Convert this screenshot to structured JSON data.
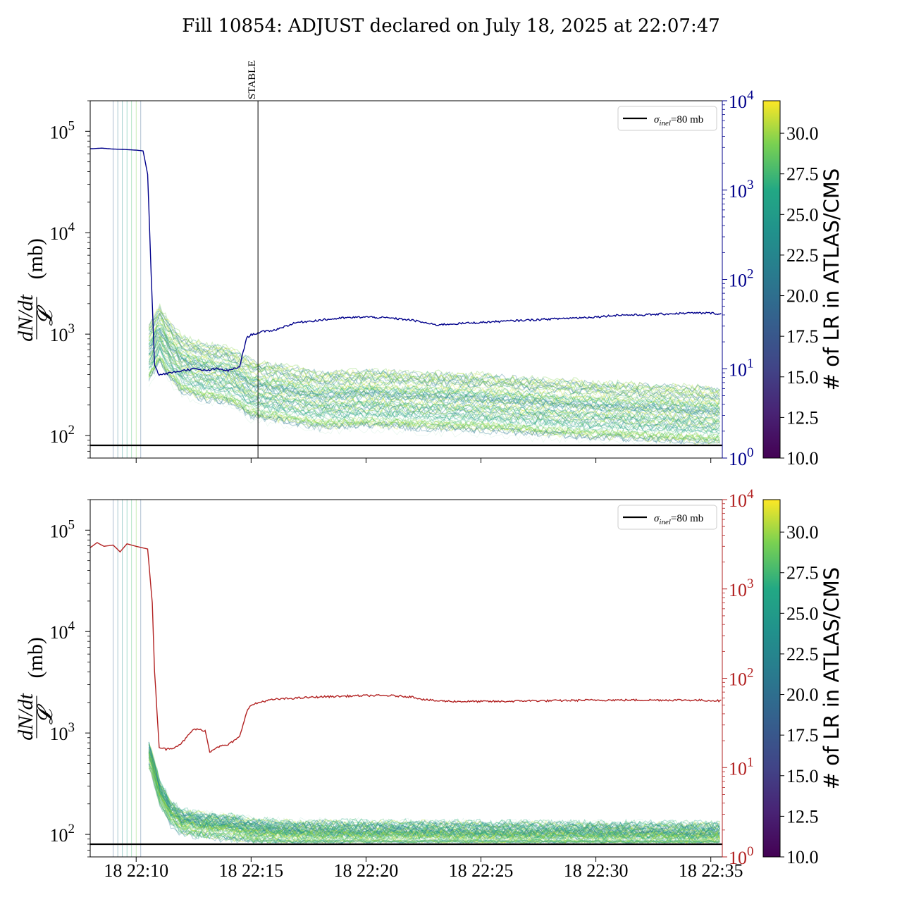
{
  "title": "Fill 10854: ADJUST declared on July 18, 2025 at 22:07:47",
  "chart_data": [
    {
      "type": "line",
      "panel": "top",
      "ylabel": "dN/dt / 𝓛 (mb)",
      "ylim": [
        60,
        200000
      ],
      "yscale": "log",
      "y_ticks": [
        "10^2",
        "10^3",
        "10^4",
        "10^5"
      ],
      "x_ticks": [
        "18 22:10",
        "18 22:15",
        "18 22:20",
        "18 22:25",
        "18 22:30",
        "18 22:35"
      ],
      "x_range_minutes": [
        8.0,
        35.5
      ],
      "reference_line": {
        "label": "σinel=80 mb",
        "value": 80
      },
      "vline": {
        "label": "STABLE",
        "x_minutes": 15.3
      },
      "right_axis": {
        "color": "#00008b",
        "yscale": "log",
        "ylim": [
          1,
          10000
        ],
        "ticks": [
          "10^0",
          "10^1",
          "10^2",
          "10^3",
          "10^4"
        ],
        "series_points_min_value": [
          [
            8.0,
            2900
          ],
          [
            8.5,
            2950
          ],
          [
            9.0,
            2880
          ],
          [
            9.5,
            2850
          ],
          [
            10.0,
            2800
          ],
          [
            10.3,
            2750
          ],
          [
            10.5,
            1500
          ],
          [
            10.65,
            120
          ],
          [
            10.8,
            11
          ],
          [
            11.0,
            8.5
          ],
          [
            11.5,
            9
          ],
          [
            12.0,
            9.5
          ],
          [
            12.5,
            10
          ],
          [
            13.0,
            9.5
          ],
          [
            13.5,
            10
          ],
          [
            14.0,
            9.5
          ],
          [
            14.5,
            10.5
          ],
          [
            14.8,
            22
          ],
          [
            15.0,
            24
          ],
          [
            15.5,
            26
          ],
          [
            16.0,
            27
          ],
          [
            16.5,
            30
          ],
          [
            17.0,
            33
          ],
          [
            18.0,
            35
          ],
          [
            19.0,
            37
          ],
          [
            20.0,
            38
          ],
          [
            21.0,
            37
          ],
          [
            22.0,
            35
          ],
          [
            22.5,
            33
          ],
          [
            23.0,
            31
          ],
          [
            24.0,
            32
          ],
          [
            25.0,
            33
          ],
          [
            26.0,
            34
          ],
          [
            27.0,
            35
          ],
          [
            28.0,
            36
          ],
          [
            29.0,
            37
          ],
          [
            30.0,
            38
          ],
          [
            31.0,
            40
          ],
          [
            32.0,
            40
          ],
          [
            33.0,
            41
          ],
          [
            34.0,
            42
          ],
          [
            35.0,
            42
          ],
          [
            35.5,
            41
          ]
        ]
      },
      "bundle": {
        "typical_points": [
          [
            10.6,
            600
          ],
          [
            11.0,
            900
          ],
          [
            11.5,
            600
          ],
          [
            12.0,
            450
          ],
          [
            13.0,
            380
          ],
          [
            14.0,
            360
          ],
          [
            14.6,
            300
          ],
          [
            15.0,
            260
          ],
          [
            16.0,
            240
          ],
          [
            17.0,
            220
          ],
          [
            18.0,
            200
          ],
          [
            20.0,
            210
          ],
          [
            22.0,
            200
          ],
          [
            25.0,
            190
          ],
          [
            28.0,
            170
          ],
          [
            30.0,
            160
          ],
          [
            33.0,
            150
          ],
          [
            35.5,
            140
          ]
        ]
      }
    },
    {
      "type": "line",
      "panel": "bottom",
      "ylabel": "dN/dt / 𝓛 (mb)",
      "ylim": [
        60,
        200000
      ],
      "yscale": "log",
      "y_ticks": [
        "10^2",
        "10^3",
        "10^4",
        "10^5"
      ],
      "x_ticks": [
        "18 22:10",
        "18 22:15",
        "18 22:20",
        "18 22:25",
        "18 22:30",
        "18 22:35"
      ],
      "x_range_minutes": [
        8.0,
        35.5
      ],
      "reference_line": {
        "label": "σinel=80 mb",
        "value": 80
      },
      "right_axis": {
        "color": "#b22222",
        "yscale": "log",
        "ylim": [
          1,
          10000
        ],
        "ticks": [
          "10^0",
          "10^1",
          "10^2",
          "10^3",
          "10^4"
        ],
        "series_points_min_value": [
          [
            8.0,
            2900
          ],
          [
            8.3,
            3300
          ],
          [
            8.6,
            3000
          ],
          [
            9.0,
            3100
          ],
          [
            9.3,
            2600
          ],
          [
            9.6,
            3200
          ],
          [
            10.0,
            3000
          ],
          [
            10.5,
            2800
          ],
          [
            10.7,
            700
          ],
          [
            10.8,
            120
          ],
          [
            11.0,
            17
          ],
          [
            11.3,
            16
          ],
          [
            11.7,
            17
          ],
          [
            12.0,
            19
          ],
          [
            12.5,
            27
          ],
          [
            13.0,
            26
          ],
          [
            13.2,
            15
          ],
          [
            13.5,
            17
          ],
          [
            14.0,
            18
          ],
          [
            14.5,
            22
          ],
          [
            14.8,
            42
          ],
          [
            15.0,
            50
          ],
          [
            15.5,
            55
          ],
          [
            16.0,
            58
          ],
          [
            17.0,
            60
          ],
          [
            18.0,
            62
          ],
          [
            19.0,
            63
          ],
          [
            20.0,
            64
          ],
          [
            21.0,
            64
          ],
          [
            22.0,
            62
          ],
          [
            22.5,
            58
          ],
          [
            23.0,
            56
          ],
          [
            24.0,
            55
          ],
          [
            25.0,
            55
          ],
          [
            26.0,
            55
          ],
          [
            27.0,
            56
          ],
          [
            28.0,
            56
          ],
          [
            30.0,
            57
          ],
          [
            32.0,
            57
          ],
          [
            34.0,
            57
          ],
          [
            35.5,
            56
          ]
        ]
      },
      "bundle": {
        "typical_points": [
          [
            10.6,
            600
          ],
          [
            11.0,
            260
          ],
          [
            11.5,
            160
          ],
          [
            12.0,
            130
          ],
          [
            13.0,
            120
          ],
          [
            14.0,
            115
          ],
          [
            14.6,
            110
          ],
          [
            15.0,
            105
          ],
          [
            17.0,
            100
          ],
          [
            20.0,
            100
          ],
          [
            25.0,
            98
          ],
          [
            30.0,
            97
          ],
          [
            35.5,
            96
          ]
        ]
      }
    }
  ],
  "colorbar": {
    "label": "# of LR in ATLAS/CMS",
    "range": [
      10.0,
      32.0
    ],
    "ticks": [
      "10.0",
      "12.5",
      "15.0",
      "17.5",
      "20.0",
      "22.5",
      "25.0",
      "27.5",
      "30.0"
    ],
    "colormap": "viridis"
  },
  "legend_label_sigma": "σ",
  "legend_label_sub": "inel",
  "legend_label_rest": "=80 mb"
}
